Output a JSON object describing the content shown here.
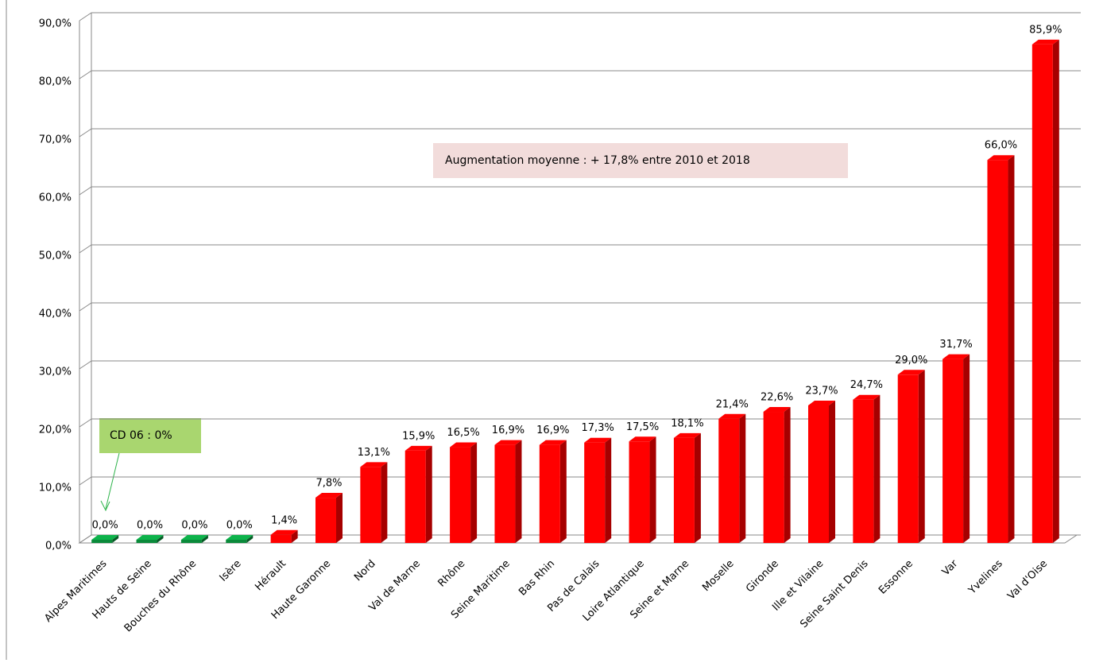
{
  "chart_data": {
    "type": "bar",
    "categories": [
      "Alpes Maritimes",
      "Hauts de Seine",
      "Bouches du Rhône",
      "Isère",
      "Hérault",
      "Haute Garonne",
      "Nord",
      "Val de Marne",
      "Rhône",
      "Seine Maritime",
      "Bas Rhin",
      "Pas de Calais",
      "Loire Atlantique",
      "Seine et Marne",
      "Moselle",
      "Gironde",
      "Ille et Vilaine",
      "Seine Saint Denis",
      "Essonne",
      "Var",
      "Yvelines",
      "Val d'Oise"
    ],
    "values": [
      0,
      0,
      0,
      0,
      1.4,
      7.8,
      13.1,
      15.9,
      16.5,
      16.9,
      16.9,
      17.3,
      17.5,
      18.1,
      21.4,
      22.6,
      23.7,
      24.7,
      29.0,
      31.7,
      66.0,
      85.9
    ],
    "value_labels": [
      "0,0%",
      "0,0%",
      "0,0%",
      "0,0%",
      "1,4%",
      "7,8%",
      "13,1%",
      "15,9%",
      "16,5%",
      "16,9%",
      "16,9%",
      "17,3%",
      "17,5%",
      "18,1%",
      "21,4%",
      "22,6%",
      "23,7%",
      "24,7%",
      "29,0%",
      "31,7%",
      "66,0%",
      "85,9%"
    ],
    "colors": [
      "#0a8a3a",
      "#0a8a3a",
      "#0a8a3a",
      "#0a8a3a",
      "#ff0000",
      "#ff0000",
      "#ff0000",
      "#ff0000",
      "#ff0000",
      "#ff0000",
      "#ff0000",
      "#ff0000",
      "#ff0000",
      "#ff0000",
      "#ff0000",
      "#ff0000",
      "#ff0000",
      "#ff0000",
      "#ff0000",
      "#ff0000",
      "#ff0000",
      "#ff0000"
    ],
    "ylim": [
      0,
      90
    ],
    "yticks": [
      {
        "value": 0,
        "label": "0,0%"
      },
      {
        "value": 10,
        "label": "10,0%"
      },
      {
        "value": 20,
        "label": "20,0%"
      },
      {
        "value": 30,
        "label": "30,0%"
      },
      {
        "value": 40,
        "label": "40,0%"
      },
      {
        "value": 50,
        "label": "50,0%"
      },
      {
        "value": 60,
        "label": "60,0%"
      },
      {
        "value": 70,
        "label": "70,0%"
      },
      {
        "value": 80,
        "label": "80,0%"
      },
      {
        "value": 90,
        "label": "90,0%"
      }
    ],
    "grid": true,
    "annotations": [
      "Augmentation moyenne : + 17,8% entre 2010  et 2018",
      "CD 06 : 0%"
    ]
  }
}
